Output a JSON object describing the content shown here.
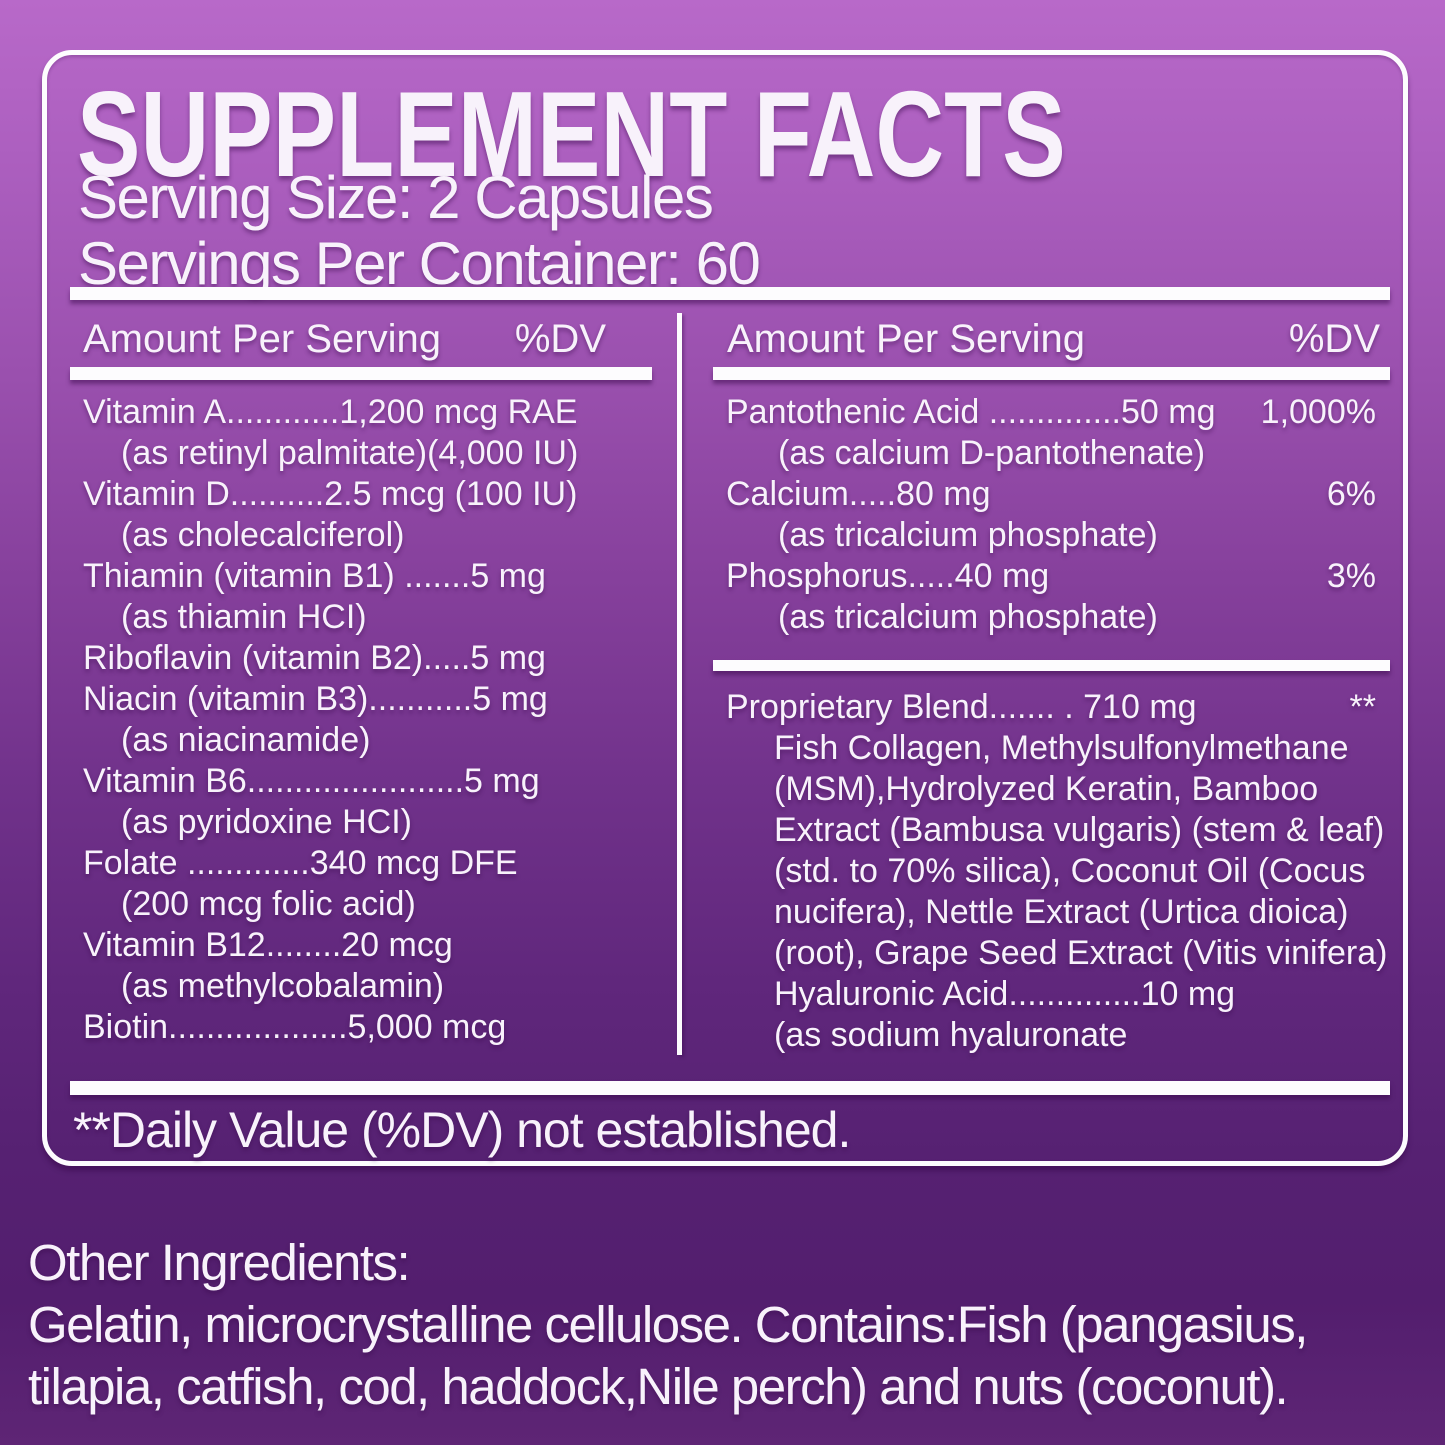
{
  "label": {
    "title": "SUPPLEMENT FACTS",
    "serving_size": "Serving Size: 2 Capsules",
    "servings_per_container": "Servings Per Container: 60",
    "column_header": {
      "amount": "Amount Per Serving",
      "dv": "%DV"
    },
    "left_column": {
      "rows": [
        {
          "main": "Vitamin A............1,200 mcg RAE",
          "subs": [
            "(as retinyl palmitate)(4,000 IU)"
          ]
        },
        {
          "main": "Vitamin D..........2.5 mcg (100 IU)",
          "subs": [
            "(as cholecalciferol)"
          ]
        },
        {
          "main": "Thiamin (vitamin B1) .......5 mg",
          "subs": [
            "(as thiamin HCI)"
          ]
        },
        {
          "main": "Riboflavin (vitamin B2).....5 mg",
          "subs": []
        },
        {
          "main": "Niacin (vitamin B3)...........5 mg",
          "subs": [
            "(as niacinamide)"
          ]
        },
        {
          "main": "Vitamin B6.......................5 mg",
          "subs": [
            "(as pyridoxine HCI)"
          ]
        },
        {
          "main": "Folate .............340 mcg DFE",
          "subs": [
            "(200 mcg folic acid)"
          ]
        },
        {
          "main": "Vitamin B12........20 mcg",
          "subs": [
            "(as methylcobalamin)"
          ]
        },
        {
          "main": "Biotin...................5,000 mcg",
          "subs": []
        }
      ]
    },
    "right_column": {
      "rows": [
        {
          "main": "Pantothenic Acid ..............50 mg",
          "dv": "1,000%",
          "subs": [
            "(as calcium D-pantothenate)"
          ]
        },
        {
          "main": "Calcium.....80 mg",
          "dv": "6%",
          "subs": [
            "(as tricalcium phosphate)"
          ]
        },
        {
          "main": "Phosphorus.....40 mg",
          "dv": "3%",
          "subs": [
            "(as tricalcium phosphate)"
          ]
        }
      ],
      "blend": {
        "main": "Proprietary Blend....... .  710 mg",
        "dv": "**",
        "subs": [
          "Fish Collagen, Methylsulfonylmethane",
          "(MSM),Hydrolyzed Keratin, Bamboo",
          "Extract (Bambusa vulgaris) (stem & leaf)",
          "(std. to 70% silica), Coconut Oil (Cocus",
          "nucifera), Nettle Extract (Urtica dioica)",
          "(root), Grape Seed Extract (Vitis vinifera)",
          "Hyaluronic Acid..............10 mg",
          "(as sodium hyaluronate"
        ]
      }
    },
    "footnote": "**Daily Value (%DV) not established.",
    "other_ingredients": {
      "heading": "Other Ingredients:",
      "lines": [
        "Gelatin, microcrystalline cellulose. Contains:Fish (pangasius,",
        "tilapia, catfish, cod, haddock,Nile perch) and nuts (coconut)."
      ]
    }
  },
  "colors": {
    "background_top": "#b869c9",
    "background_bottom": "#5e2575",
    "rule_white": "#fdfcfe",
    "text": "#f8f2fb"
  }
}
